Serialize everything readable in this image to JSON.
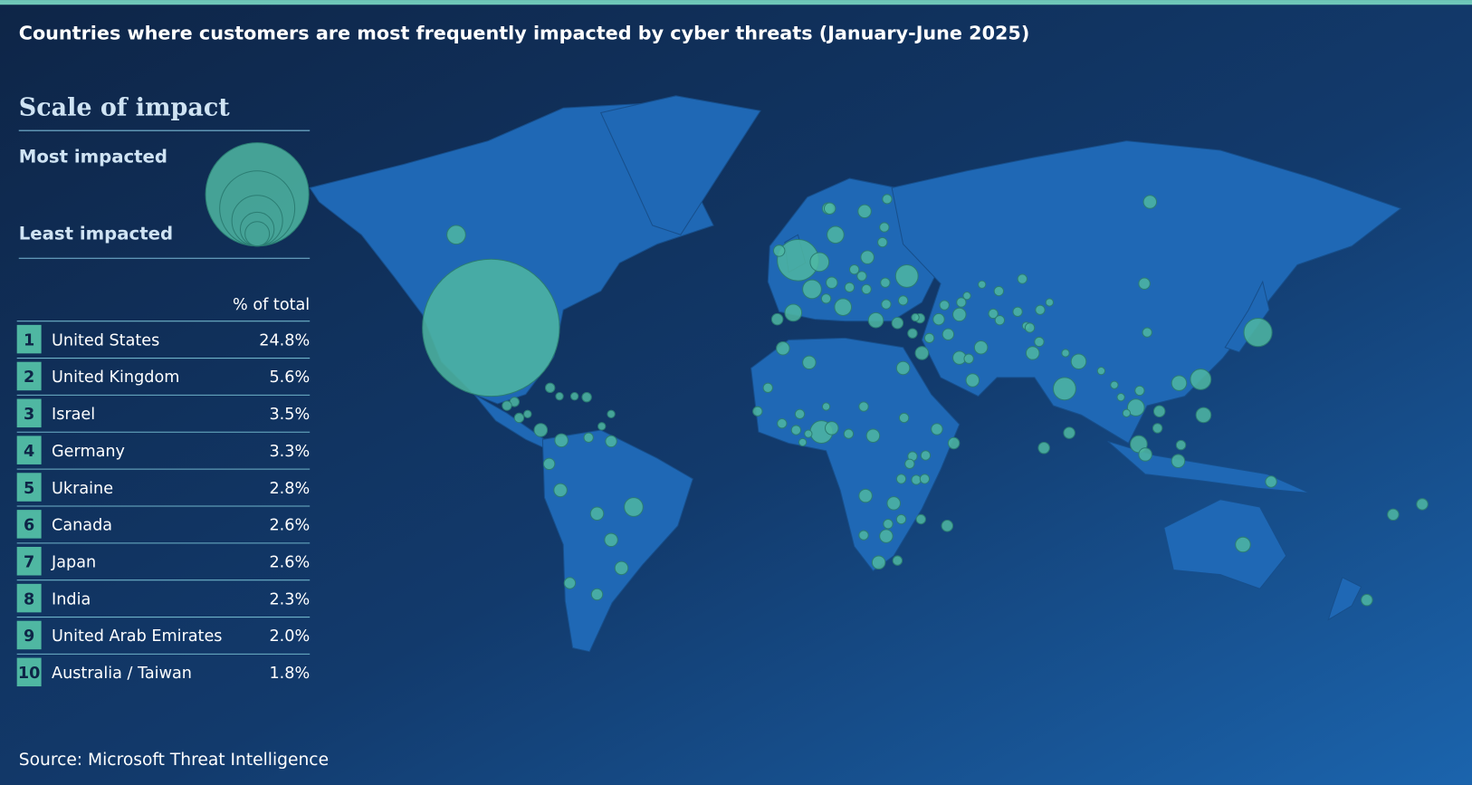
{
  "header": {
    "title": "Countries where customers are most frequently impacted by cyber threats  (January-June 2025)"
  },
  "legend": {
    "title": "Scale of impact",
    "most": "Most impacted",
    "least": "Least impacted"
  },
  "table": {
    "header": "% of total",
    "rows": [
      [
        "1",
        "United States",
        "24.8%"
      ],
      [
        "2",
        "United Kingdom",
        "5.6%"
      ],
      [
        "3",
        "Israel",
        "3.5%"
      ],
      [
        "4",
        "Germany",
        "3.3%"
      ],
      [
        "5",
        "Ukraine",
        "2.8%"
      ],
      [
        "6",
        "Canada",
        "2.6%"
      ],
      [
        "7",
        "Japan",
        "2.6%"
      ],
      [
        "8",
        "India",
        "2.3%"
      ],
      [
        "9",
        "United Arab Emirates",
        "2.0%"
      ],
      [
        "10",
        "Australia / Taiwan",
        "1.8%"
      ]
    ]
  },
  "footer": {
    "source": "Source: Microsoft Threat Intelligence"
  }
}
